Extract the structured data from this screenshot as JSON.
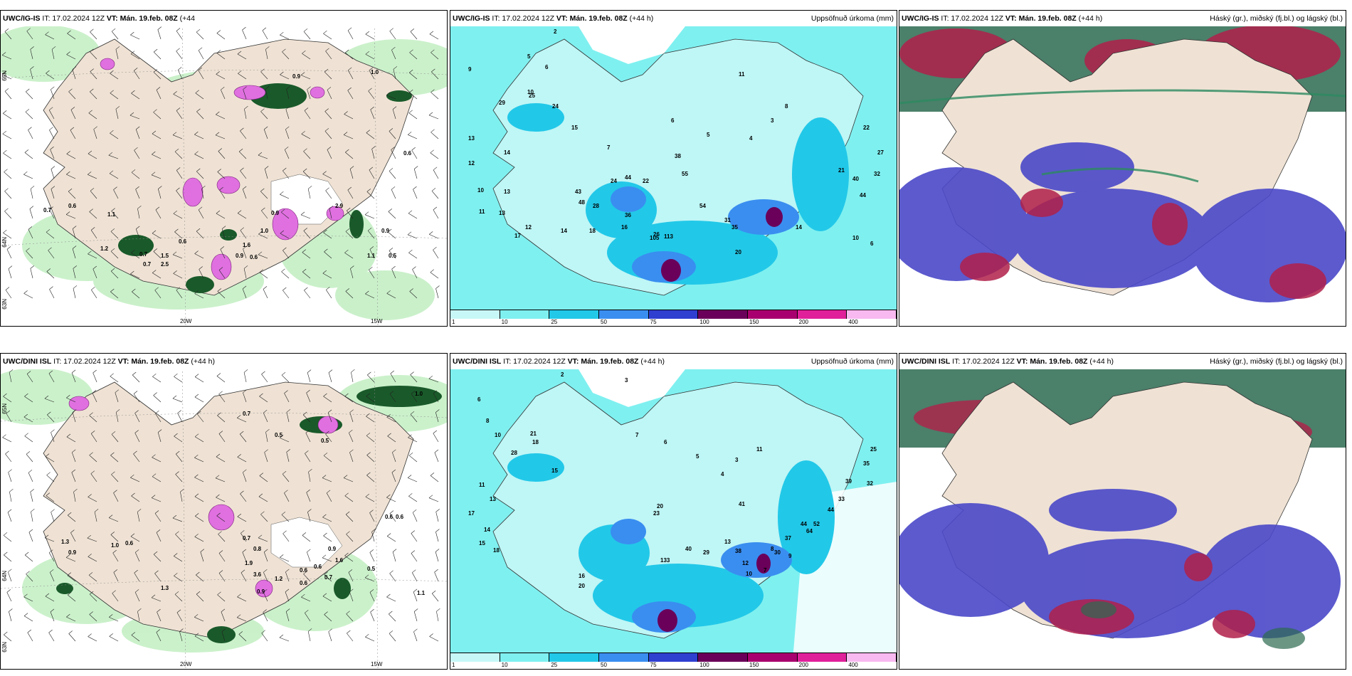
{
  "top_row": {
    "wind_panel": {
      "title_model": "UWC/IG-IS",
      "title_it": "IT: 17.02.2024 12Z",
      "title_vt": "VT: Mán. 19.feb. 08Z",
      "title_lead": "(+44",
      "title_lead2": "h)",
      "lat_labels": [
        "65N",
        "64N",
        "63N"
      ],
      "lon_labels": [
        "20W",
        "15W"
      ],
      "values": [
        "1.0",
        "0.9",
        "0.6",
        "0.7",
        "0.6",
        "1.1",
        "0.6",
        "0.9",
        "0.7",
        "1.0",
        "1.5",
        "1.2",
        "0.7",
        "2.5",
        "1.6",
        "0.6",
        "0.9",
        "1.1",
        "0.9",
        "0.5",
        "2.9"
      ]
    },
    "precip_panel": {
      "title_model": "UWC/IG-IS",
      "title_it": "IT: 17.02.2024 12Z",
      "title_vt": "VT: Mán. 19.feb. 08Z",
      "title_lead": "(+44 h)",
      "title_right": "Uppsöfnuð úrkoma (mm)",
      "values": [
        "2",
        "9",
        "5",
        "6",
        "10",
        "29",
        "25",
        "24",
        "15",
        "13",
        "14",
        "12",
        "10",
        "11",
        "13",
        "17",
        "12",
        "14",
        "18",
        "16",
        "26",
        "105",
        "113",
        "35",
        "31",
        "20",
        "14",
        "10",
        "6",
        "13",
        "21",
        "40",
        "44",
        "32",
        "27",
        "22",
        "36",
        "48",
        "43",
        "28",
        "54",
        "44",
        "22",
        "24",
        "38",
        "55",
        "7",
        "6",
        "5",
        "4",
        "3",
        "8",
        "11"
      ],
      "colorbar_ticks": [
        "1",
        "10",
        "25",
        "50",
        "75",
        "100",
        "150",
        "200",
        "400"
      ],
      "colorbar_colors": [
        "#c8f7f7",
        "#7ff0f0",
        "#22c8e8",
        "#3a8ef0",
        "#2f3fd0",
        "#6a005a",
        "#a8006e",
        "#e0209a",
        "#f8b8f0"
      ]
    },
    "cloud_panel": {
      "title_model": "UWC/IG-IS",
      "title_it": "IT: 17.02.2024 12Z",
      "title_vt": "VT: Mán. 19.feb. 08Z",
      "title_lead": "(+44 h)",
      "title_right": "Háský (gr.), miðský (fj.bl.) og lágský (bl.)"
    }
  },
  "bottom_row": {
    "wind_panel": {
      "title_model": "UWC/DINI ISL",
      "title_it": "IT: 17.02.2024 12Z",
      "title_vt": "VT: Mán. 19.feb. 08Z",
      "title_lead": "(+44 h)",
      "lat_labels": [
        "65N",
        "64N",
        "63N"
      ],
      "lon_labels": [
        "20W",
        "15W"
      ],
      "values": [
        "1.0",
        "0.6",
        "0.5",
        "0.7",
        "0.5",
        "1.3",
        "0.9",
        "1.0",
        "0.6",
        "1.3",
        "0.7",
        "0.8",
        "1.2",
        "0.6",
        "0.9",
        "0.6",
        "1.1",
        "0.5",
        "0.6",
        "0.7",
        "0.6",
        "1.6",
        "0.9",
        "3.6",
        "1.9"
      ]
    },
    "precip_panel": {
      "title_model": "UWC/DINI ISL",
      "title_it": "IT: 17.02.2024 12Z",
      "title_vt": "VT: Mán. 19.feb. 08Z",
      "title_lead": "(+44 h)",
      "title_right": "Uppsöfnuð úrkoma (mm)",
      "values": [
        "2",
        "3",
        "6",
        "8",
        "10",
        "28",
        "21",
        "18",
        "15",
        "11",
        "13",
        "17",
        "14",
        "15",
        "18",
        "20",
        "16",
        "133",
        "40",
        "29",
        "38",
        "13",
        "12",
        "10",
        "7",
        "9",
        "8",
        "25",
        "35",
        "32",
        "39",
        "33",
        "44",
        "52",
        "64",
        "44",
        "37",
        "30",
        "41",
        "20",
        "23",
        "7",
        "6",
        "5",
        "4",
        "3",
        "11"
      ],
      "colorbar_ticks": [
        "1",
        "10",
        "25",
        "50",
        "75",
        "100",
        "150",
        "200",
        "400"
      ],
      "colorbar_colors": [
        "#c8f7f7",
        "#7ff0f0",
        "#22c8e8",
        "#3a8ef0",
        "#2f3fd0",
        "#6a005a",
        "#a8006e",
        "#e0209a",
        "#f8b8f0"
      ]
    },
    "cloud_panel": {
      "title_model": "UWC/DINI ISL",
      "title_it": "IT: 17.02.2024 12Z",
      "title_vt": "VT: Mán. 19.feb. 08Z",
      "title_lead": "(+44 h)",
      "title_right": "Háský (gr.), miðský (fj.bl.) og lágský (bl.)"
    }
  },
  "colors": {
    "land": "#efe2d4",
    "precip_light_green": "#c8f0c8",
    "precip_green": "#6cc86c",
    "precip_dark_green": "#1a5a2a",
    "snow_magenta": "#e070e0",
    "cyan_base": "#bff6f6",
    "cyan_mid": "#34e4ec",
    "high_cloud": "#2c6a50",
    "mid_cloud": "#b0204a",
    "low_cloud": "#4a48c8"
  }
}
